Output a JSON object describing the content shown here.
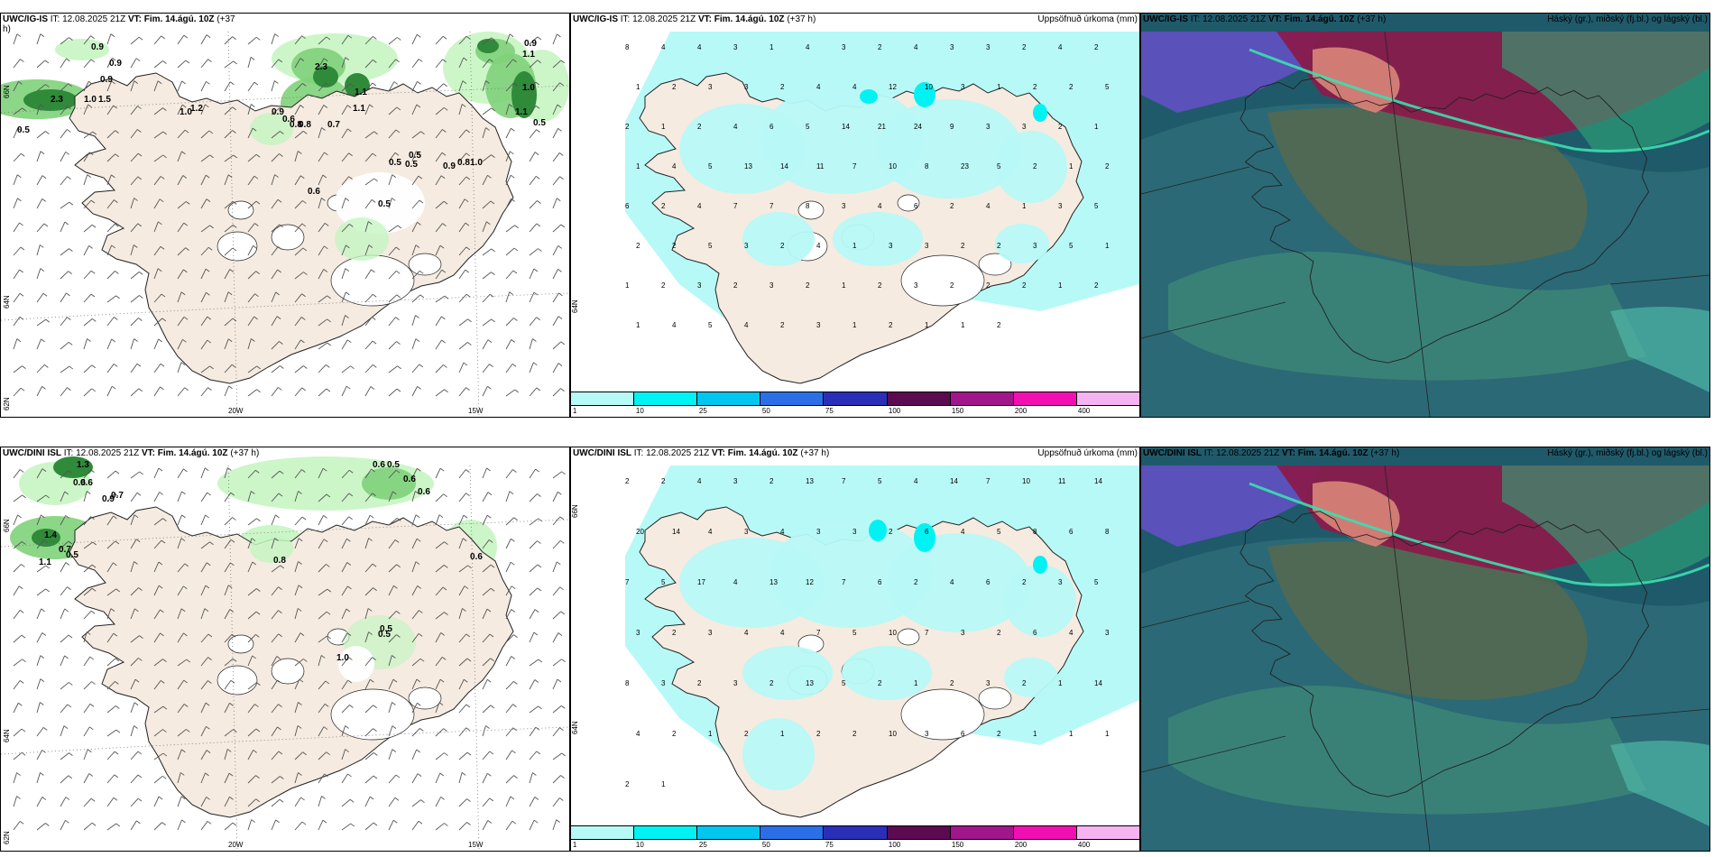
{
  "colors": {
    "land": "#f5ebe0",
    "precip_light": "#b7f9f7",
    "precip_cyan": "#00f2f2",
    "green_light": "#c6f5c2",
    "green_mid": "#7fd17a",
    "green_dark": "#2f8a3a",
    "cloud_high": "#8b1a4a",
    "cloud_mid": "#2bb38f",
    "cloud_low": "#2c6a78",
    "cloud_base": "#1f5a6a"
  },
  "panels": {
    "p1": {
      "title_model": "UWC/IG-IS",
      "title_it": " IT: 12.08.2025 21Z ",
      "title_vt": "VT: Fim. 14.ágú. 10Z",
      "title_lead": " (+37",
      "title_lead2": "h)",
      "lon_labels": [
        "20W",
        "15W"
      ],
      "lat_labels": [
        "66N",
        "64N",
        "62N"
      ],
      "values": [
        "0.9",
        "0.9",
        "0.9",
        "2.3",
        "1.0",
        "1.5",
        "0.5",
        "1.0",
        "1.2",
        "0.9",
        "0.6",
        "0.8",
        "0.8",
        "0.7",
        "2.3",
        "1.1",
        "1.1",
        "0.6",
        "0.5",
        "0.5",
        "0.5",
        "0.9",
        "0.8",
        "1.0",
        "0.5",
        "0.9",
        "1.1",
        "1.0",
        "1.1",
        "0.5"
      ]
    },
    "p2": {
      "title_model": "UWC/IG-IS",
      "title_it": " IT: 12.08.2025 21Z ",
      "title_vt": "VT: Fim. 14.ágú. 10Z",
      "title_lead": " (+37 h)",
      "subtitle": "Uppsöfnuð úrkoma (mm)",
      "lat_label": "64N",
      "colorbar_labels": [
        "1",
        "10",
        "25",
        "50",
        "75",
        "100",
        "150",
        "200",
        "400"
      ],
      "colorbar_colors": [
        "#b7f9f7",
        "#00f2f2",
        "#00c6f0",
        "#2b6fe8",
        "#2a2fb8",
        "#5c0a52",
        "#a1168a",
        "#f20fb2",
        "#f5b3f2"
      ],
      "values": [
        "8",
        "4",
        "4",
        "3",
        "1",
        "4",
        "3",
        "2",
        "4",
        "3",
        "3",
        "2",
        "4",
        "2",
        "1",
        "2",
        "3",
        "3",
        "2",
        "4",
        "4",
        "12",
        "10",
        "3",
        "1",
        "2",
        "2",
        "5",
        "2",
        "1",
        "2",
        "4",
        "6",
        "5",
        "14",
        "21",
        "24",
        "9",
        "3",
        "3",
        "2",
        "1",
        "1",
        "4",
        "5",
        "13",
        "14",
        "11",
        "7",
        "10",
        "8",
        "23",
        "5",
        "2",
        "1",
        "2",
        "6",
        "2",
        "4",
        "7",
        "7",
        "8",
        "3",
        "4",
        "6",
        "2",
        "4",
        "1",
        "3",
        "5",
        "2",
        "2",
        "5",
        "3",
        "2",
        "4",
        "1",
        "3",
        "3",
        "2",
        "2",
        "3",
        "5",
        "1",
        "1",
        "2",
        "3",
        "2",
        "3",
        "2",
        "1",
        "2",
        "3",
        "2",
        "2",
        "2",
        "1",
        "2",
        "1",
        "4",
        "5",
        "4",
        "2",
        "3",
        "1",
        "2",
        "1",
        "1",
        "2"
      ]
    },
    "p3": {
      "title_model": "UWC/IG-IS",
      "title_it": " IT: 12.08.2025 21Z ",
      "title_vt": "VT: Fim. 14.ágú. 10Z",
      "title_lead": " (+37 h)",
      "subtitle": "Háský (gr.), miðský (fj.bl.) og lágský (bl.)"
    },
    "p4": {
      "title_model": "UWC/DINI ISL",
      "title_it": " IT: 12.08.2025 21Z ",
      "title_vt": "VT: Fim. 14.ágú. 10Z",
      "title_lead": " (+37 h)",
      "lon_labels": [
        "20W",
        "15W"
      ],
      "lat_labels": [
        "66N",
        "64N",
        "62N"
      ],
      "values": [
        "1.3",
        "0.6",
        "0.6",
        "0.9",
        "0.7",
        "1.4",
        "0.7",
        "0.5",
        "1.1",
        "0.8",
        "0.6",
        "0.6",
        "0.5",
        "0.6",
        "0.6",
        "0.5",
        "0.5",
        "1.0"
      ]
    },
    "p5": {
      "title_model": "UWC/DINI ISL",
      "title_it": " IT: 12.08.2025 21Z ",
      "title_vt": "VT: Fim. 14.ágú. 10Z",
      "title_lead": " (+37 h)",
      "subtitle": "Uppsöfnuð úrkoma (mm)",
      "lat_label_top": "66N",
      "lat_label_bottom": "64N",
      "colorbar_labels": [
        "1",
        "10",
        "25",
        "50",
        "75",
        "100",
        "150",
        "200",
        "400"
      ],
      "colorbar_colors": [
        "#b7f9f7",
        "#00f2f2",
        "#00c6f0",
        "#2b6fe8",
        "#2a2fb8",
        "#5c0a52",
        "#a1168a",
        "#f20fb2",
        "#f5b3f2"
      ],
      "values": [
        "2",
        "2",
        "4",
        "3",
        "2",
        "13",
        "7",
        "5",
        "4",
        "14",
        "7",
        "10",
        "11",
        "14",
        "20",
        "14",
        "4",
        "3",
        "4",
        "3",
        "3",
        "2",
        "6",
        "4",
        "5",
        "8",
        "6",
        "8",
        "7",
        "5",
        "17",
        "4",
        "13",
        "12",
        "7",
        "6",
        "2",
        "4",
        "6",
        "2",
        "3",
        "5",
        "3",
        "2",
        "3",
        "4",
        "4",
        "7",
        "5",
        "10",
        "7",
        "3",
        "2",
        "6",
        "4",
        "3",
        "8",
        "3",
        "2",
        "3",
        "2",
        "13",
        "5",
        "2",
        "1",
        "2",
        "3",
        "2",
        "1",
        "14",
        "4",
        "2",
        "1",
        "2",
        "1",
        "2",
        "2",
        "10",
        "3",
        "6",
        "2",
        "1",
        "1",
        "1",
        "2",
        "1"
      ]
    },
    "p6": {
      "title_model": "UWC/DINI ISL",
      "title_it": " IT: 12.08.2025 21Z ",
      "title_vt": "VT: Fim. 14.ágú. 10Z",
      "title_lead": " (+37 h)",
      "subtitle": "Háský (gr.), miðský (fj.bl.) og lágský (bl.)"
    }
  }
}
